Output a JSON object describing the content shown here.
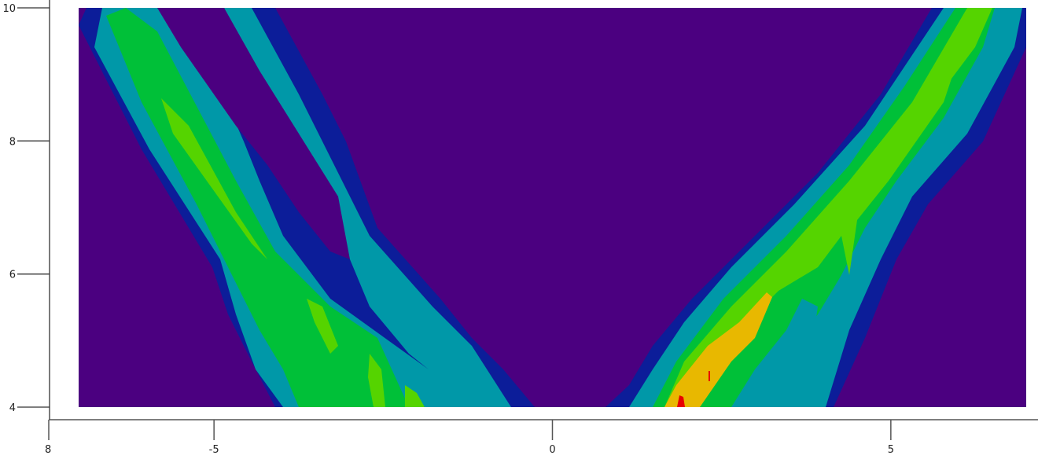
{
  "chart_data": {
    "type": "contour",
    "title": "",
    "xlabel": "",
    "ylabel": "",
    "xlim": [
      -7,
      7
    ],
    "ylim": [
      4,
      10
    ],
    "x_axis_visible_range": [
      -7.4,
      7.2
    ],
    "x_ticks": [
      {
        "value": -5,
        "label": "-5"
      },
      {
        "value": 0,
        "label": "0"
      },
      {
        "value": 5,
        "label": "5"
      }
    ],
    "x_origin_label": "8",
    "y_ticks": [
      {
        "value": 4,
        "label": "4"
      },
      {
        "value": 6,
        "label": "6"
      },
      {
        "value": 8,
        "label": "8"
      },
      {
        "value": 10,
        "label": "10"
      }
    ],
    "grid": false,
    "legend": "none",
    "colormap_levels": [
      {
        "level": 0,
        "color": "#4b0080"
      },
      {
        "level": 1,
        "color": "#0c1d99"
      },
      {
        "level": 2,
        "color": "#0098a8"
      },
      {
        "level": 3,
        "color": "#00c038"
      },
      {
        "level": 4,
        "color": "#55d400"
      },
      {
        "level": 5,
        "color": "#e8b800"
      },
      {
        "level": 6,
        "color": "#e80000"
      }
    ],
    "description_of_features": [
      "two diagonal bands forming a V shape, opening upward",
      "peak intensity near x≈1.9, y≈4.1"
    ]
  }
}
